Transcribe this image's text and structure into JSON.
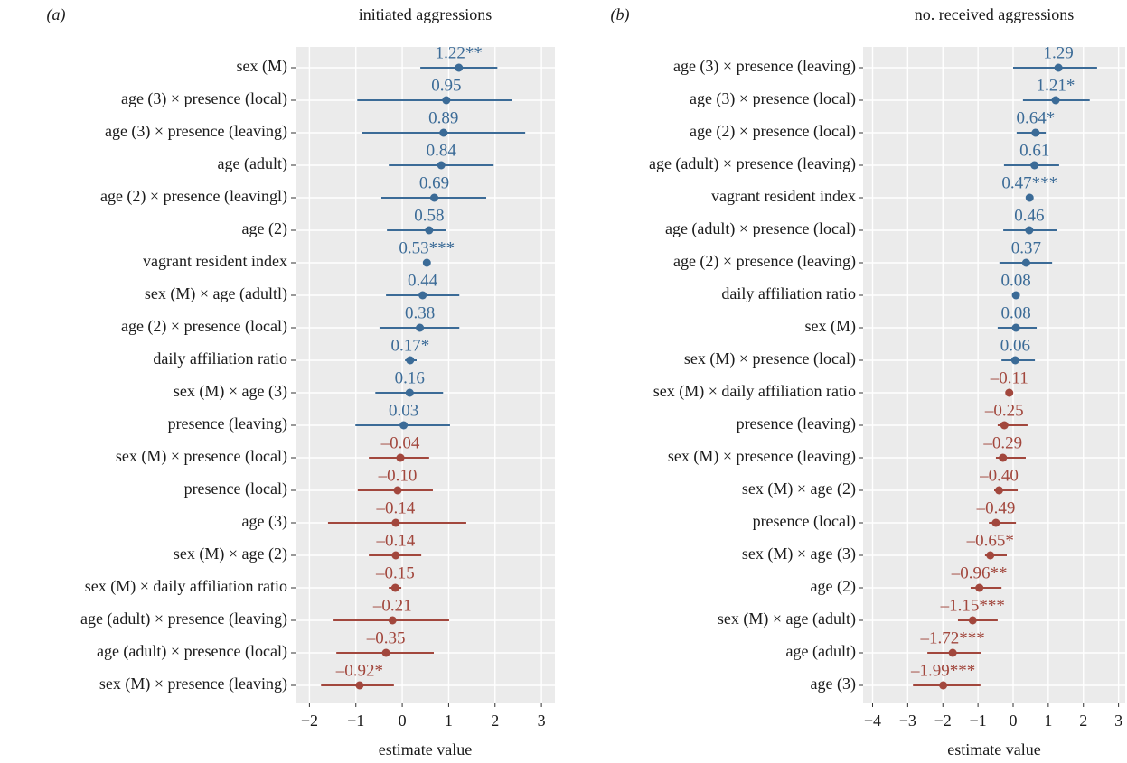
{
  "chart_data": [
    {
      "type": "forest",
      "panel_label": "(a)",
      "title": "initiated aggressions",
      "xlabel": "estimate value",
      "categories": [
        "sex (M)",
        "age (3) × presence (local)",
        "age (3) × presence (leaving)",
        "age (adult)",
        "age (2) × presence (leavingl)",
        "age (2)",
        "vagrant resident index",
        "sex (M) × age (adultl)",
        "age (2) × presence (local)",
        "daily affiliation ratio",
        "sex (M) × age (3)",
        "presence (leaving)",
        "sex (M) × presence (local)",
        "presence (local)",
        "age (3)",
        "sex (M) × age (2)",
        "sex (M) × daily affiliation ratio",
        "age (adult) × presence (leaving)",
        "age (adult) × presence (local)",
        "sex (M) × presence (leaving)"
      ],
      "values": [
        1.22,
        0.95,
        0.89,
        0.84,
        0.69,
        0.58,
        0.53,
        0.44,
        0.38,
        0.17,
        0.16,
        0.03,
        -0.04,
        -0.1,
        -0.14,
        -0.14,
        -0.15,
        -0.21,
        -0.35,
        -0.92
      ],
      "value_labels": [
        "1.22**",
        "0.95",
        "0.89",
        "0.84",
        "0.69",
        "0.58",
        "0.53***",
        "0.44",
        "0.38",
        "0.17*",
        "0.16",
        "0.03",
        "–0.04",
        "–0.10",
        "–0.14",
        "–0.14",
        "–0.15",
        "–0.21",
        "–0.35",
        "–0.92*"
      ],
      "ci_low": [
        0.39,
        -0.97,
        -0.86,
        -0.29,
        -0.45,
        -0.33,
        0.47,
        -0.35,
        -0.49,
        0.06,
        -0.58,
        -1.01,
        -0.72,
        -0.96,
        -1.6,
        -0.72,
        -0.29,
        -1.48,
        -1.42,
        -1.75
      ],
      "ci_high": [
        2.05,
        2.36,
        2.65,
        1.97,
        1.81,
        0.94,
        0.59,
        1.23,
        1.23,
        0.31,
        0.88,
        1.03,
        0.58,
        0.66,
        1.38,
        0.41,
        -0.02,
        1.01,
        0.68,
        -0.18
      ],
      "xlim": [
        -2.3,
        3.29
      ],
      "xticks": [
        {
          "value": -2,
          "label": "−2"
        },
        {
          "value": -1,
          "label": "−1"
        },
        0,
        1,
        2,
        3
      ],
      "positive_color": "#3b6b97",
      "negative_color": "#a2473d",
      "grid": true
    },
    {
      "type": "forest",
      "panel_label": "(b)",
      "title": "no. received aggressions",
      "xlabel": "estimate value",
      "categories": [
        "age (3) × presence (leaving)",
        "age (3) × presence (local)",
        "age (2) × presence (local)",
        "age (adult) × presence (leaving)",
        "vagrant resident index",
        "age (adult) × presence (local)",
        "age (2) × presence (leaving)",
        "daily affiliation ratio",
        "sex (M)",
        "sex (M) × presence (local)",
        "sex (M) × daily affiliation ratio",
        "presence (leaving)",
        "sex (M) × presence (leaving)",
        "sex (M) × age (2)",
        "presence (local)",
        "sex (M) × age (3)",
        "age (2)",
        "sex (M) × age (adult)",
        "age (adult)",
        "age (3)"
      ],
      "values": [
        1.29,
        1.21,
        0.64,
        0.61,
        0.47,
        0.46,
        0.37,
        0.08,
        0.08,
        0.06,
        -0.11,
        -0.25,
        -0.29,
        -0.4,
        -0.49,
        -0.65,
        -0.96,
        -1.15,
        -1.72,
        -1.99
      ],
      "value_labels": [
        "1.29",
        "1.21*",
        "0.64*",
        "0.61",
        "0.47***",
        "0.46",
        "0.37",
        "0.08",
        "0.08",
        "0.06",
        "–0.11",
        "–0.25",
        "–0.29",
        "–0.40",
        "–0.49",
        "–0.65*",
        "–0.96**",
        "–1.15***",
        "–1.72***",
        "–1.99***"
      ],
      "ci_low": [
        0.0,
        0.28,
        0.1,
        -0.26,
        0.42,
        -0.28,
        -0.39,
        0.03,
        -0.44,
        -0.33,
        -0.2,
        -0.44,
        -0.49,
        -0.54,
        -0.69,
        -0.8,
        -1.21,
        -1.57,
        -2.44,
        -2.85
      ],
      "ci_high": [
        2.39,
        2.18,
        0.93,
        1.31,
        0.52,
        1.26,
        1.11,
        0.13,
        0.67,
        0.62,
        -0.02,
        0.41,
        0.36,
        0.13,
        0.08,
        -0.18,
        -0.33,
        -0.44,
        -0.9,
        -0.93
      ],
      "xlim": [
        -4.27,
        3.19
      ],
      "xticks": [
        {
          "value": -4,
          "label": "−4"
        },
        {
          "value": -3,
          "label": "−3"
        },
        {
          "value": -2,
          "label": "−2"
        },
        {
          "value": -1,
          "label": "−1"
        },
        0,
        1,
        2,
        3
      ],
      "positive_color": "#3b6b97",
      "negative_color": "#a2473d",
      "grid": true
    }
  ]
}
